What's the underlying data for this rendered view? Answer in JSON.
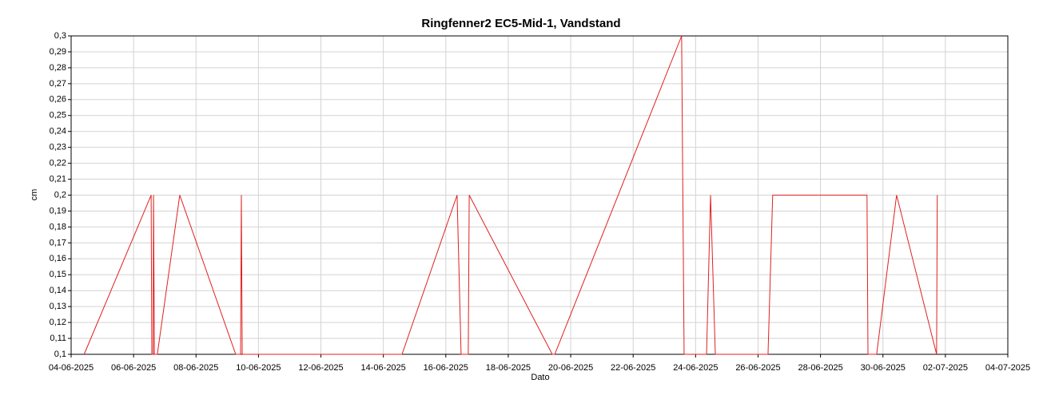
{
  "chart_data": {
    "type": "line",
    "title": "Ringfenner2 EC5-Mid-1, Vandstand",
    "x_label": "Dato",
    "y_label": "cm",
    "grid": true,
    "x": [
      "2025-06-04T10:00",
      "2025-06-06T13:30",
      "2025-06-06T14:00",
      "2025-06-06T15:00",
      "2025-06-06T15:20",
      "2025-06-06T16:00",
      "2025-06-06T18:15",
      "2025-06-07T11:30",
      "2025-06-09T06:30",
      "2025-06-09T10:15",
      "2025-06-09T10:50",
      "2025-06-09T11:30",
      "2025-06-14T14:20",
      "2025-06-16T08:40",
      "2025-06-16T11:45",
      "2025-06-16T17:15",
      "2025-06-16T18:00",
      "2025-06-19T09:50",
      "2025-06-19T11:45",
      "2025-06-23T13:15",
      "2025-06-23T15:10",
      "2025-06-24T08:25",
      "2025-06-24T11:30",
      "2025-06-24T15:10",
      "2025-06-26T07:40",
      "2025-06-26T11:15",
      "2025-06-29T11:45",
      "2025-06-29T12:30",
      "2025-06-29T19:10",
      "2025-06-30T10:30",
      "2025-07-01T17:15",
      "2025-07-01T17:45"
    ],
    "series": [
      {
        "color": "#e02020",
        "values": [
          0.1,
          0.2,
          0.1,
          0.1,
          0.2,
          0.1,
          0.1,
          0.2,
          0.1,
          0.1,
          0.2,
          0.1,
          0.1,
          0.2,
          0.1,
          0.1,
          0.2,
          0.1,
          0.1,
          0.3,
          0.1,
          0.1,
          0.2,
          0.1,
          0.1,
          0.2,
          0.2,
          0.1,
          0.1,
          0.2,
          0.1,
          0.2
        ]
      }
    ],
    "xlim": [
      "2025-06-04T00:00",
      "2025-07-04T00:00"
    ],
    "xticks": [
      {
        "value": "2025-06-04T00:00",
        "label": "04-06-2025"
      },
      {
        "value": "2025-06-06T00:00",
        "label": "06-06-2025"
      },
      {
        "value": "2025-06-08T00:00",
        "label": "08-06-2025"
      },
      {
        "value": "2025-06-10T00:00",
        "label": "10-06-2025"
      },
      {
        "value": "2025-06-12T00:00",
        "label": "12-06-2025"
      },
      {
        "value": "2025-06-14T00:00",
        "label": "14-06-2025"
      },
      {
        "value": "2025-06-16T00:00",
        "label": "16-06-2025"
      },
      {
        "value": "2025-06-18T00:00",
        "label": "18-06-2025"
      },
      {
        "value": "2025-06-20T00:00",
        "label": "20-06-2025"
      },
      {
        "value": "2025-06-22T00:00",
        "label": "22-06-2025"
      },
      {
        "value": "2025-06-24T00:00",
        "label": "24-06-2025"
      },
      {
        "value": "2025-06-26T00:00",
        "label": "26-06-2025"
      },
      {
        "value": "2025-06-28T00:00",
        "label": "28-06-2025"
      },
      {
        "value": "2025-06-30T00:00",
        "label": "30-06-2025"
      },
      {
        "value": "2025-07-02T00:00",
        "label": "02-07-2025"
      },
      {
        "value": "2025-07-04T00:00",
        "label": "04-07-2025"
      }
    ],
    "ylim": [
      0.1,
      0.3
    ],
    "yticks": [
      {
        "value": 0.1,
        "label": "0,1"
      },
      {
        "value": 0.11,
        "label": "0,11"
      },
      {
        "value": 0.12,
        "label": "0,12"
      },
      {
        "value": 0.13,
        "label": "0,13"
      },
      {
        "value": 0.14,
        "label": "0,14"
      },
      {
        "value": 0.15,
        "label": "0,15"
      },
      {
        "value": 0.16,
        "label": "0,16"
      },
      {
        "value": 0.17,
        "label": "0,17"
      },
      {
        "value": 0.18,
        "label": "0,18"
      },
      {
        "value": 0.19,
        "label": "0,19"
      },
      {
        "value": 0.2,
        "label": "0,2"
      },
      {
        "value": 0.21,
        "label": "0,21"
      },
      {
        "value": 0.22,
        "label": "0,22"
      },
      {
        "value": 0.23,
        "label": "0,23"
      },
      {
        "value": 0.24,
        "label": "0,24"
      },
      {
        "value": 0.25,
        "label": "0,25"
      },
      {
        "value": 0.26,
        "label": "0,26"
      },
      {
        "value": 0.27,
        "label": "0,27"
      },
      {
        "value": 0.28,
        "label": "0,28"
      },
      {
        "value": 0.29,
        "label": "0,29"
      },
      {
        "value": 0.3,
        "label": "0,3"
      }
    ]
  }
}
